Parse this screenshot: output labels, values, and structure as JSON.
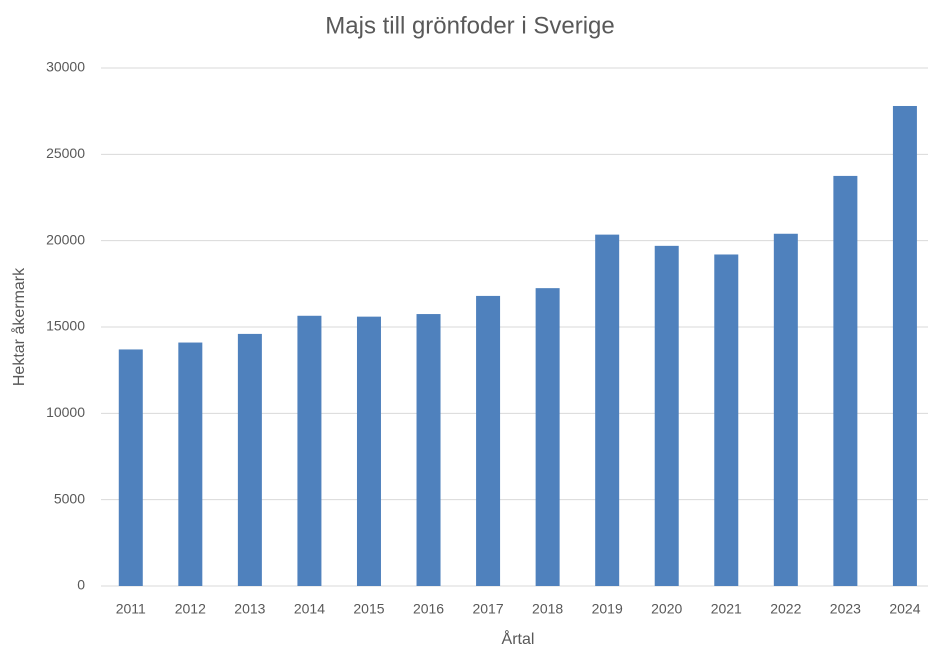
{
  "chart_data": {
    "type": "bar",
    "title": "Majs till grönfoder i Sverige",
    "x_label": "Årtal",
    "y_label": "Hektar åkermark",
    "categories": [
      "2011",
      "2012",
      "2013",
      "2014",
      "2015",
      "2016",
      "2017",
      "2018",
      "2019",
      "2020",
      "2021",
      "2022",
      "2023",
      "2024"
    ],
    "values": [
      13700,
      14100,
      14600,
      15650,
      15600,
      15750,
      16800,
      17250,
      20350,
      19700,
      19200,
      20400,
      23750,
      27800
    ],
    "color": "#4f81bd",
    "ylim": [
      0,
      30000
    ],
    "yticks": [
      0,
      5000,
      10000,
      15000,
      20000,
      25000,
      30000
    ],
    "grid": true
  }
}
